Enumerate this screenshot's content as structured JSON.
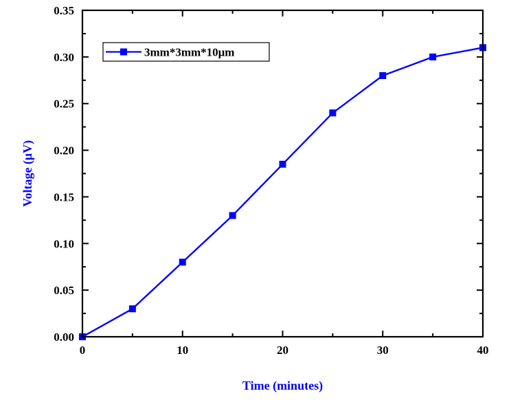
{
  "chart_data": {
    "type": "line",
    "title": "",
    "xlabel": "Time (minutes)",
    "ylabel": "Voltage (μV)",
    "xlim": [
      0,
      40
    ],
    "ylim": [
      0,
      0.35
    ],
    "x_ticks": [
      "0",
      "10",
      "20",
      "30",
      "40"
    ],
    "y_ticks": [
      "0.00",
      "0.05",
      "0.10",
      "0.15",
      "0.20",
      "0.25",
      "0.30",
      "0.35"
    ],
    "grid": false,
    "legend_position": "top-left",
    "series": [
      {
        "name": "3mm*3mm*10μm",
        "color": "#0000ff",
        "marker": "square",
        "x": [
          0,
          5,
          10,
          15,
          20,
          25,
          30,
          35,
          40
        ],
        "values": [
          0.0,
          0.03,
          0.08,
          0.13,
          0.185,
          0.24,
          0.28,
          0.3,
          0.31
        ]
      }
    ]
  },
  "colors": {
    "axis": "#000000",
    "label": "#0000ff"
  }
}
